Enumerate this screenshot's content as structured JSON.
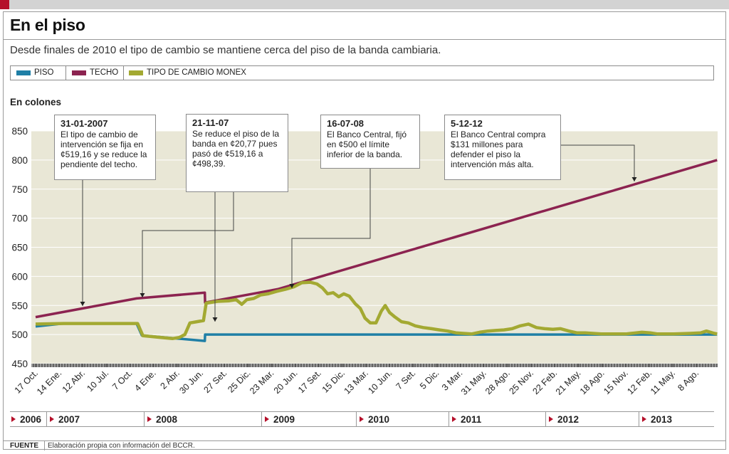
{
  "title": "En el piso",
  "subtitle": "Desde finales de 2010 el tipo de cambio se mantiene cerca del piso de la banda cambiaria.",
  "legend": [
    {
      "label": "PISO",
      "color": "#1f7fa6"
    },
    {
      "label": "TECHO",
      "color": "#8c2350"
    },
    {
      "label": "TIPO DE CAMBIO MONEX",
      "color": "#a3a932"
    }
  ],
  "units_label": "En colones",
  "annotations": [
    {
      "date": "31-01-2007",
      "text": "El tipo de cambio de intervención se fija en ¢519,16 y se reduce la pendiente del techo."
    },
    {
      "date": "21-11-07",
      "text": "Se reduce el piso de la banda en ¢20,77 pues pasó de ¢519,16 a ¢498,39."
    },
    {
      "date": "16-07-08",
      "text": "El Banco Central, fijó en ¢500 el límite inferior de la banda."
    },
    {
      "date": "5-12-12",
      "text": "El Banco Central compra $131 millones para defender el piso la intervención más alta."
    }
  ],
  "years": [
    "2006",
    "2007",
    "2008",
    "2009",
    "2010",
    "2011",
    "2012",
    "2013"
  ],
  "source_label": "FUENTE",
  "source_text": "Elaboración propia con información del BCCR.",
  "chart_data": {
    "type": "line",
    "ylim": [
      450,
      850
    ],
    "yticks": [
      450,
      500,
      550,
      600,
      650,
      700,
      750,
      800,
      850
    ],
    "x_tick_labels": [
      "17 Oct.",
      "14 Ene.",
      "12 Abr.",
      "10 Jul.",
      "7 Oct.",
      "4 Ene.",
      "2 Abr.",
      "30 Jun.",
      "27 Set.",
      "25 Dic.",
      "23 Mar.",
      "20 Jun.",
      "17 Set.",
      "15 Dic.",
      "13 Mar.",
      "10 Jun.",
      "7 Set.",
      "5 Dic.",
      "3 Mar.",
      "31 May.",
      "28 Ago.",
      "25 Nov.",
      "22 Feb.",
      "21 May.",
      "18 Ago.",
      "15 Nov.",
      "12 Feb.",
      "11 May.",
      "8 Ago."
    ],
    "x_tick_dates": [
      "2006-10-17",
      "2007-01-14",
      "2007-04-12",
      "2007-07-10",
      "2007-10-07",
      "2008-01-04",
      "2008-04-02",
      "2008-06-30",
      "2008-09-27",
      "2008-12-25",
      "2009-03-23",
      "2009-06-20",
      "2009-09-17",
      "2009-12-15",
      "2010-03-13",
      "2010-06-10",
      "2010-09-07",
      "2010-12-05",
      "2011-03-03",
      "2011-05-31",
      "2011-08-28",
      "2011-11-25",
      "2012-02-22",
      "2012-05-21",
      "2012-08-18",
      "2012-11-15",
      "2013-02-12",
      "2013-05-11",
      "2013-08-08"
    ],
    "series": [
      {
        "name": "PISO",
        "color": "#1f7fa6",
        "points": [
          [
            "2006-10-17",
            514
          ],
          [
            "2007-01-31",
            519.16
          ],
          [
            "2007-11-01",
            519.16
          ],
          [
            "2007-11-21",
            498.39
          ],
          [
            "2008-07-15",
            489
          ],
          [
            "2008-07-16",
            500
          ],
          [
            "2013-10-25",
            500
          ]
        ]
      },
      {
        "name": "TECHO",
        "color": "#8c2350",
        "points": [
          [
            "2006-10-17",
            530
          ],
          [
            "2007-11-01",
            562
          ],
          [
            "2008-07-15",
            572
          ],
          [
            "2008-07-16",
            555
          ],
          [
            "2009-04-15",
            578
          ],
          [
            "2013-10-25",
            800
          ]
        ]
      },
      {
        "name": "TIPO DE CAMBIO MONEX",
        "color": "#a3a932",
        "points": [
          [
            "2006-10-17",
            518
          ],
          [
            "2007-01-31",
            519
          ],
          [
            "2007-06-01",
            519
          ],
          [
            "2007-10-01",
            519
          ],
          [
            "2007-11-05",
            519
          ],
          [
            "2007-11-25",
            498
          ],
          [
            "2008-02-01",
            495
          ],
          [
            "2008-03-15",
            493
          ],
          [
            "2008-04-10",
            495
          ],
          [
            "2008-05-01",
            500
          ],
          [
            "2008-05-20",
            520
          ],
          [
            "2008-06-15",
            522
          ],
          [
            "2008-07-10",
            524
          ],
          [
            "2008-07-20",
            554
          ],
          [
            "2008-09-01",
            557
          ],
          [
            "2008-10-15",
            558
          ],
          [
            "2008-11-10",
            560
          ],
          [
            "2008-12-01",
            552
          ],
          [
            "2008-12-20",
            560
          ],
          [
            "2009-01-15",
            562
          ],
          [
            "2009-02-10",
            568
          ],
          [
            "2009-03-10",
            570
          ],
          [
            "2009-04-10",
            574
          ],
          [
            "2009-05-15",
            578
          ],
          [
            "2009-06-15",
            582
          ],
          [
            "2009-07-15",
            589
          ],
          [
            "2009-08-15",
            590
          ],
          [
            "2009-09-10",
            587
          ],
          [
            "2009-10-01",
            580
          ],
          [
            "2009-10-20",
            570
          ],
          [
            "2009-11-10",
            572
          ],
          [
            "2009-12-01",
            565
          ],
          [
            "2009-12-20",
            570
          ],
          [
            "2010-01-10",
            566
          ],
          [
            "2010-02-01",
            553
          ],
          [
            "2010-02-20",
            545
          ],
          [
            "2010-03-10",
            528
          ],
          [
            "2010-03-30",
            520
          ],
          [
            "2010-04-20",
            520
          ],
          [
            "2010-05-10",
            540
          ],
          [
            "2010-05-25",
            550
          ],
          [
            "2010-06-10",
            538
          ],
          [
            "2010-07-01",
            530
          ],
          [
            "2010-07-25",
            522
          ],
          [
            "2010-08-20",
            520
          ],
          [
            "2010-09-15",
            515
          ],
          [
            "2010-10-15",
            512
          ],
          [
            "2010-11-15",
            510
          ],
          [
            "2010-12-15",
            508
          ],
          [
            "2011-01-15",
            506
          ],
          [
            "2011-02-15",
            503
          ],
          [
            "2011-03-15",
            502
          ],
          [
            "2011-04-15",
            501
          ],
          [
            "2011-05-15",
            504
          ],
          [
            "2011-06-15",
            506
          ],
          [
            "2011-07-15",
            507
          ],
          [
            "2011-08-15",
            508
          ],
          [
            "2011-09-15",
            510
          ],
          [
            "2011-10-15",
            515
          ],
          [
            "2011-11-15",
            518
          ],
          [
            "2011-12-15",
            512
          ],
          [
            "2012-01-15",
            510
          ],
          [
            "2012-02-15",
            509
          ],
          [
            "2012-03-15",
            510
          ],
          [
            "2012-04-15",
            506
          ],
          [
            "2012-05-15",
            503
          ],
          [
            "2012-06-15",
            503
          ],
          [
            "2012-07-15",
            502
          ],
          [
            "2012-08-15",
            501
          ],
          [
            "2012-09-15",
            501
          ],
          [
            "2012-10-15",
            501
          ],
          [
            "2012-11-15",
            501
          ],
          [
            "2012-12-05",
            502
          ],
          [
            "2013-01-15",
            504
          ],
          [
            "2013-02-15",
            503
          ],
          [
            "2013-03-15",
            501
          ],
          [
            "2013-05-15",
            501
          ],
          [
            "2013-07-15",
            502
          ],
          [
            "2013-08-25",
            503
          ],
          [
            "2013-09-15",
            506
          ],
          [
            "2013-10-15",
            502
          ],
          [
            "2013-10-25",
            501
          ]
        ]
      }
    ]
  }
}
